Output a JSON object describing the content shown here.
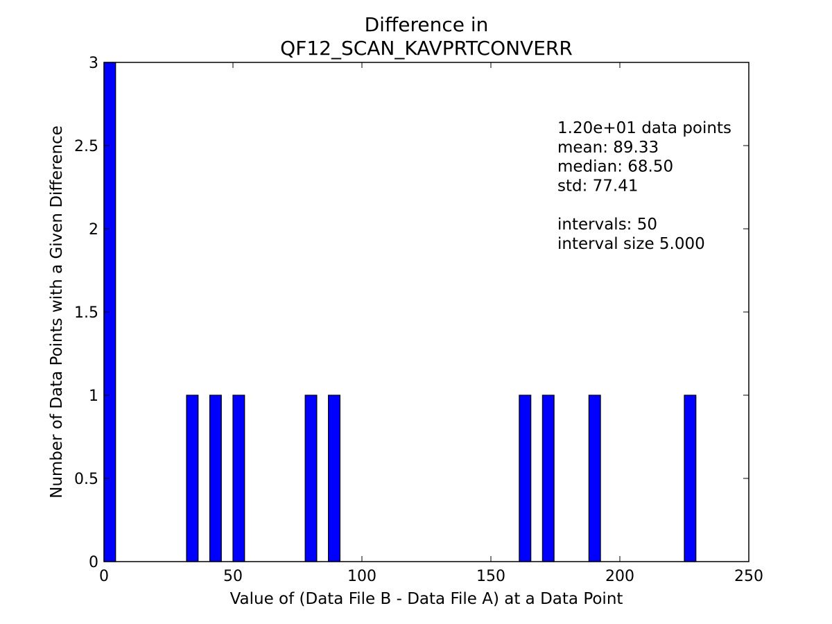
{
  "chart_data": {
    "type": "bar",
    "title_lines": [
      "Difference in",
      "QF12_SCAN_KAVPRTCONVERR"
    ],
    "xlabel": "Value of (Data File B - Data File A) at a Data Point",
    "ylabel": "Number of Data Points with a Given Difference",
    "xlim": [
      0,
      250
    ],
    "ylim": [
      0,
      3
    ],
    "x_ticks": [
      0,
      50,
      100,
      150,
      200,
      250
    ],
    "y_ticks": [
      0,
      0.5,
      1,
      1.5,
      2,
      2.5,
      3
    ],
    "x_tick_labels": [
      "0",
      "50",
      "100",
      "150",
      "200",
      "250"
    ],
    "y_tick_labels": [
      "0",
      "0.5",
      "1",
      "1.5",
      "2",
      "2.5",
      "3"
    ],
    "grid": false,
    "bar_color": "#0000ff",
    "bars": [
      {
        "x_start": 0.0,
        "x_end": 4.5,
        "count": 3
      },
      {
        "x_start": 32.0,
        "x_end": 36.5,
        "count": 1
      },
      {
        "x_start": 41.0,
        "x_end": 45.5,
        "count": 1
      },
      {
        "x_start": 50.0,
        "x_end": 54.5,
        "count": 1
      },
      {
        "x_start": 78.0,
        "x_end": 82.5,
        "count": 1
      },
      {
        "x_start": 87.0,
        "x_end": 91.5,
        "count": 1
      },
      {
        "x_start": 161.0,
        "x_end": 165.5,
        "count": 1
      },
      {
        "x_start": 170.0,
        "x_end": 174.5,
        "count": 1
      },
      {
        "x_start": 188.0,
        "x_end": 192.5,
        "count": 1
      },
      {
        "x_start": 225.0,
        "x_end": 229.5,
        "count": 1
      }
    ],
    "annotation_lines": [
      "1.20e+01 data points",
      "mean: 89.33",
      "median: 68.50",
      "std: 77.41",
      "",
      "intervals: 50",
      "interval size 5.000"
    ]
  }
}
